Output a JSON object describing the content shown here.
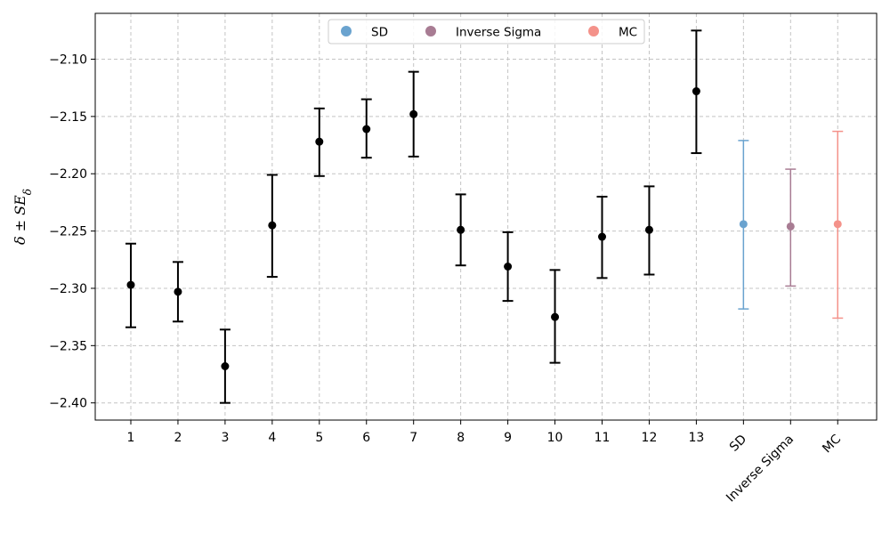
{
  "chart_data": {
    "type": "scatter",
    "subtype": "point-with-error-bars",
    "ylabel": "δ ± SE_δ",
    "ylim": [
      -2.415,
      -2.06
    ],
    "yticks": [
      -2.4,
      -2.35,
      -2.3,
      -2.25,
      -2.2,
      -2.15,
      -2.1
    ],
    "ytick_labels": [
      "−2.40",
      "−2.35",
      "−2.30",
      "−2.25",
      "−2.20",
      "−2.15",
      "−2.10"
    ],
    "categories": [
      "1",
      "2",
      "3",
      "4",
      "5",
      "6",
      "7",
      "8",
      "9",
      "10",
      "11",
      "12",
      "13",
      "SD",
      "Inverse Sigma",
      "MC"
    ],
    "grid": true,
    "legend_position": "top-center",
    "series": [
      {
        "color": "#000000",
        "points": [
          {
            "category": "1",
            "y": -2.297,
            "low": -2.334,
            "high": -2.261
          },
          {
            "category": "2",
            "y": -2.303,
            "low": -2.329,
            "high": -2.277
          },
          {
            "category": "3",
            "y": -2.368,
            "low": -2.4,
            "high": -2.336
          },
          {
            "category": "4",
            "y": -2.245,
            "low": -2.29,
            "high": -2.201
          },
          {
            "category": "5",
            "y": -2.172,
            "low": -2.202,
            "high": -2.143
          },
          {
            "category": "6",
            "y": -2.161,
            "low": -2.186,
            "high": -2.135
          },
          {
            "category": "7",
            "y": -2.148,
            "low": -2.185,
            "high": -2.111
          },
          {
            "category": "8",
            "y": -2.249,
            "low": -2.28,
            "high": -2.218
          },
          {
            "category": "9",
            "y": -2.281,
            "low": -2.311,
            "high": -2.251
          },
          {
            "category": "10",
            "y": -2.325,
            "low": -2.365,
            "high": -2.284
          },
          {
            "category": "11",
            "y": -2.255,
            "low": -2.291,
            "high": -2.22
          },
          {
            "category": "12",
            "y": -2.249,
            "low": -2.288,
            "high": -2.211
          },
          {
            "category": "13",
            "y": -2.128,
            "low": -2.182,
            "high": -2.075
          }
        ]
      },
      {
        "name": "SD",
        "color": "#6aa3cf",
        "points": [
          {
            "category": "SD",
            "y": -2.244,
            "low": -2.318,
            "high": -2.171
          }
        ]
      },
      {
        "name": "Inverse Sigma",
        "color": "#a87c93",
        "points": [
          {
            "category": "Inverse Sigma",
            "y": -2.246,
            "low": -2.298,
            "high": -2.196
          }
        ]
      },
      {
        "name": "MC",
        "color": "#f4928a",
        "points": [
          {
            "category": "MC",
            "y": -2.244,
            "low": -2.326,
            "high": -2.163
          }
        ]
      }
    ],
    "legend": [
      {
        "label": "SD",
        "color": "#6aa3cf"
      },
      {
        "label": "Inverse Sigma",
        "color": "#a87c93"
      },
      {
        "label": "MC",
        "color": "#f4928a"
      }
    ]
  }
}
